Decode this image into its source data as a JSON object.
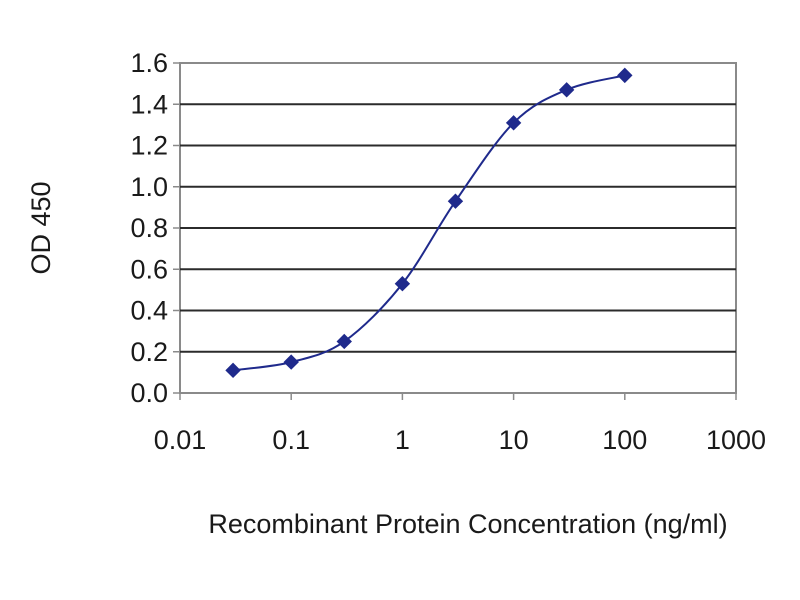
{
  "chart_data": {
    "type": "line",
    "title": "",
    "xlabel": "Recombinant Protein Concentration (ng/ml)",
    "ylabel": "OD 450",
    "x_scale": "log",
    "xlim": [
      0.01,
      1000
    ],
    "ylim": [
      0,
      1.6
    ],
    "x_ticks": [
      "0.01",
      "0.1",
      "1",
      "10",
      "100",
      "1000"
    ],
    "y_ticks": [
      "0.0",
      "0.2",
      "0.4",
      "0.6",
      "0.8",
      "1.0",
      "1.2",
      "1.4",
      "1.6"
    ],
    "grid": true,
    "legend": "none",
    "series": [
      {
        "x": [
          0.03,
          0.1,
          0.3,
          1,
          3,
          10,
          30,
          100
        ],
        "y": [
          0.11,
          0.15,
          0.25,
          0.53,
          0.93,
          1.31,
          1.47,
          1.54
        ],
        "color": "#1f2a8c",
        "marker": "diamond",
        "smooth": true
      }
    ],
    "colors": {
      "plot_background": "#ffffff",
      "gridline": "#2b2b2b",
      "frame": "#8a8a8a",
      "series": "#1f2a8c"
    }
  }
}
